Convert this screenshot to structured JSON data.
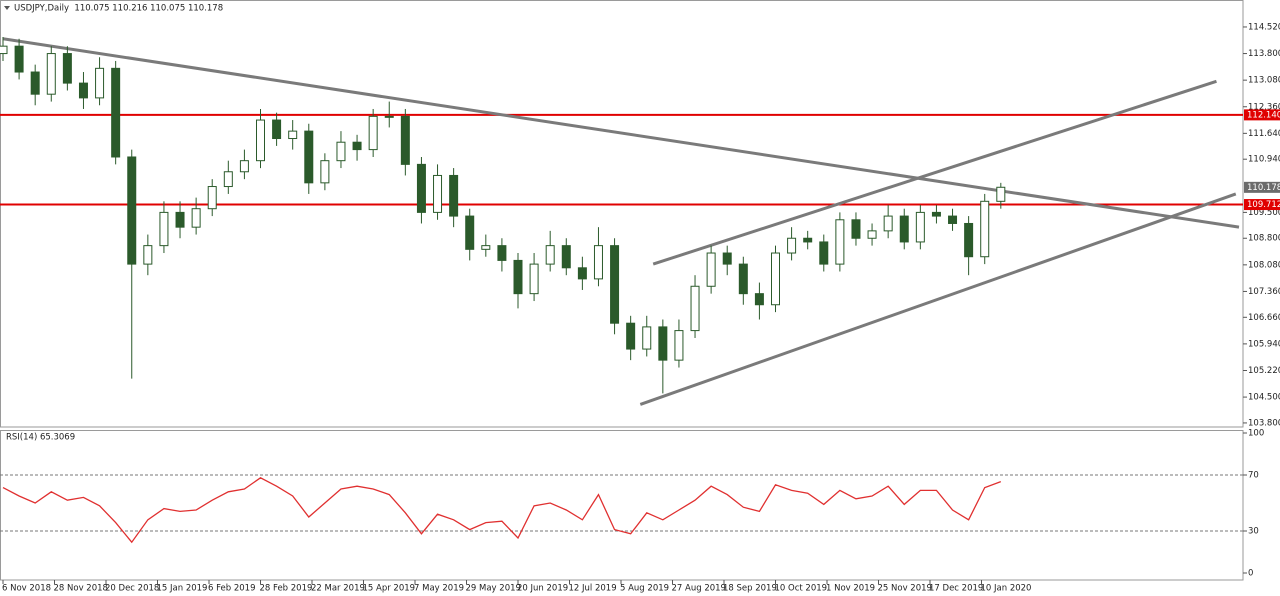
{
  "chart_data": [
    {
      "type": "candlestick",
      "title": "USDJPY,Daily  110.075 110.216 110.075 110.178",
      "up_color": "#ffffff",
      "down_color": "#2b5a2b",
      "outline_color": "#2b5a2b",
      "x": [
        0,
        5,
        10,
        15,
        20,
        25,
        30,
        35,
        40,
        45,
        50,
        55,
        60,
        65,
        70,
        75,
        80,
        85,
        90,
        95,
        100,
        105,
        110,
        115,
        120,
        125,
        130,
        135,
        140,
        145,
        150,
        155,
        160,
        165,
        170,
        175,
        180,
        185,
        190,
        195,
        200,
        205,
        210,
        215,
        220,
        225,
        230,
        235,
        240,
        245,
        250,
        255,
        260,
        265,
        270,
        275,
        280,
        285,
        290,
        295,
        300,
        305,
        310
      ],
      "ohlc": [
        [
          113.8,
          114.25,
          113.6,
          114.0
        ],
        [
          114.0,
          114.2,
          113.1,
          113.3
        ],
        [
          113.3,
          113.5,
          112.4,
          112.7
        ],
        [
          112.7,
          114.0,
          112.5,
          113.8
        ],
        [
          113.8,
          114.0,
          112.8,
          113.0
        ],
        [
          113.0,
          113.3,
          112.3,
          112.6
        ],
        [
          112.6,
          113.7,
          112.4,
          113.4
        ],
        [
          113.4,
          113.6,
          110.8,
          111.0
        ],
        [
          111.0,
          111.2,
          105.0,
          108.1
        ],
        [
          108.1,
          108.9,
          107.8,
          108.6
        ],
        [
          108.6,
          109.8,
          108.4,
          109.5
        ],
        [
          109.5,
          109.8,
          108.8,
          109.1
        ],
        [
          109.1,
          109.9,
          108.9,
          109.6
        ],
        [
          109.6,
          110.4,
          109.4,
          110.2
        ],
        [
          110.2,
          110.9,
          110.0,
          110.6
        ],
        [
          110.6,
          111.2,
          110.4,
          110.9
        ],
        [
          110.9,
          112.3,
          110.7,
          112.0
        ],
        [
          112.0,
          112.2,
          111.3,
          111.5
        ],
        [
          111.5,
          112.0,
          111.2,
          111.7
        ],
        [
          111.7,
          111.9,
          110.0,
          110.3
        ],
        [
          110.3,
          111.1,
          110.1,
          110.9
        ],
        [
          110.9,
          111.7,
          110.7,
          111.4
        ],
        [
          111.4,
          111.6,
          110.9,
          111.2
        ],
        [
          111.2,
          112.3,
          111.0,
          112.1
        ],
        [
          112.1,
          112.5,
          111.8,
          112.1
        ],
        [
          112.1,
          112.3,
          110.5,
          110.8
        ],
        [
          110.8,
          111.0,
          109.2,
          109.5
        ],
        [
          109.5,
          110.8,
          109.3,
          110.5
        ],
        [
          110.5,
          110.7,
          109.1,
          109.4
        ],
        [
          109.4,
          109.6,
          108.2,
          108.5
        ],
        [
          108.5,
          108.9,
          108.3,
          108.6
        ],
        [
          108.6,
          108.8,
          107.9,
          108.2
        ],
        [
          108.2,
          108.4,
          106.9,
          107.3
        ],
        [
          107.3,
          108.4,
          107.1,
          108.1
        ],
        [
          108.1,
          109.0,
          107.9,
          108.6
        ],
        [
          108.6,
          108.8,
          107.8,
          108.0
        ],
        [
          108.0,
          108.3,
          107.4,
          107.7
        ],
        [
          107.7,
          109.1,
          107.5,
          108.6
        ],
        [
          108.6,
          108.8,
          106.2,
          106.5
        ],
        [
          106.5,
          106.7,
          105.5,
          105.8
        ],
        [
          105.8,
          106.7,
          105.6,
          106.4
        ],
        [
          106.4,
          106.6,
          104.6,
          105.5
        ],
        [
          105.5,
          106.6,
          105.3,
          106.3
        ],
        [
          106.3,
          107.8,
          106.1,
          107.5
        ],
        [
          107.5,
          108.6,
          107.3,
          108.4
        ],
        [
          108.4,
          108.6,
          107.8,
          108.1
        ],
        [
          108.1,
          108.3,
          107.0,
          107.3
        ],
        [
          107.3,
          107.6,
          106.6,
          107.0
        ],
        [
          107.0,
          108.6,
          106.8,
          108.4
        ],
        [
          108.4,
          109.1,
          108.2,
          108.8
        ],
        [
          108.8,
          109.0,
          108.5,
          108.7
        ],
        [
          108.7,
          108.9,
          107.9,
          108.1
        ],
        [
          108.1,
          109.5,
          107.9,
          109.3
        ],
        [
          109.3,
          109.5,
          108.6,
          108.8
        ],
        [
          108.8,
          109.2,
          108.6,
          109.0
        ],
        [
          109.0,
          109.7,
          108.8,
          109.4
        ],
        [
          109.4,
          109.6,
          108.5,
          108.7
        ],
        [
          108.7,
          109.7,
          108.5,
          109.5
        ],
        [
          109.5,
          109.7,
          109.2,
          109.4
        ],
        [
          109.4,
          109.6,
          109.0,
          109.2
        ],
        [
          109.2,
          109.4,
          107.8,
          108.3
        ],
        [
          108.3,
          110.0,
          108.1,
          109.8
        ],
        [
          109.8,
          110.3,
          109.6,
          110.18
        ]
      ],
      "xlim": [
        0,
        384
      ],
      "xticks": [
        {
          "value": 0,
          "label": "6 Nov 2018"
        },
        {
          "value": 16,
          "label": "28 Nov 2018"
        },
        {
          "value": 32,
          "label": "20 Dec 2018"
        },
        {
          "value": 48,
          "label": "15 Jan 2019"
        },
        {
          "value": 64,
          "label": "6 Feb 2019"
        },
        {
          "value": 80,
          "label": "28 Feb 2019"
        },
        {
          "value": 96,
          "label": "22 Mar 2019"
        },
        {
          "value": 112,
          "label": "15 Apr 2019"
        },
        {
          "value": 128,
          "label": "7 May 2019"
        },
        {
          "value": 144,
          "label": "29 May 2019"
        },
        {
          "value": 160,
          "label": "20 Jun 2019"
        },
        {
          "value": 176,
          "label": "12 Jul 2019"
        },
        {
          "value": 192,
          "label": "5 Aug 2019"
        },
        {
          "value": 208,
          "label": "27 Aug 2019"
        },
        {
          "value": 224,
          "label": "18 Sep 2019"
        },
        {
          "value": 240,
          "label": "10 Oct 2019"
        },
        {
          "value": 256,
          "label": "1 Nov 2019"
        },
        {
          "value": 272,
          "label": "25 Nov 2019"
        },
        {
          "value": 288,
          "label": "17 Dec 2019"
        },
        {
          "value": 304,
          "label": "10 Jan 2020"
        }
      ],
      "ylim": [
        103.69,
        115.25
      ],
      "yticks": [
        {
          "value": 114.52,
          "label": "114.520"
        },
        {
          "value": 113.8,
          "label": "113.800"
        },
        {
          "value": 113.08,
          "label": "113.080"
        },
        {
          "value": 112.36,
          "label": "112.360"
        },
        {
          "value": 111.64,
          "label": "111.640"
        },
        {
          "value": 110.94,
          "label": "110.940"
        },
        {
          "value": 109.5,
          "label": "109.500"
        },
        {
          "value": 108.8,
          "label": "108.800"
        },
        {
          "value": 108.08,
          "label": "108.080"
        },
        {
          "value": 107.36,
          "label": "107.360"
        },
        {
          "value": 106.66,
          "label": "106.660"
        },
        {
          "value": 105.94,
          "label": "105.940"
        },
        {
          "value": 105.22,
          "label": "105.220"
        },
        {
          "value": 104.5,
          "label": "104.500"
        },
        {
          "value": 103.8,
          "label": "103.800"
        }
      ],
      "levels": [
        {
          "value": 112.14,
          "label": "112.140"
        },
        {
          "value": 109.712,
          "label": "109.712"
        }
      ],
      "level_color": "#e00000",
      "last_price": {
        "value": 110.178,
        "label": "110.178"
      },
      "last_price_color": "#6b6b6b",
      "trendline_color": "#7a7a7a",
      "trendlines": [
        {
          "points": [
            [
              0,
              114.2
            ],
            [
              384,
              109.1
            ]
          ]
        },
        {
          "points": [
            [
              202,
              108.1
            ],
            [
              377,
              113.05
            ]
          ]
        },
        {
          "points": [
            [
              198,
              104.3
            ],
            [
              383,
              110.0
            ]
          ]
        }
      ]
    },
    {
      "type": "line",
      "title": "RSI(14) 65.3069",
      "color": "#e03030",
      "x": [
        0,
        5,
        10,
        15,
        20,
        25,
        30,
        35,
        40,
        45,
        50,
        55,
        60,
        65,
        70,
        75,
        80,
        85,
        90,
        95,
        100,
        105,
        110,
        115,
        120,
        125,
        130,
        135,
        140,
        145,
        150,
        155,
        160,
        165,
        170,
        175,
        180,
        185,
        190,
        195,
        200,
        205,
        210,
        215,
        220,
        225,
        230,
        235,
        240,
        245,
        250,
        255,
        260,
        265,
        270,
        275,
        280,
        285,
        290,
        295,
        300,
        305,
        310
      ],
      "values": [
        61,
        55,
        50,
        58,
        52,
        54,
        48,
        36,
        22,
        38,
        46,
        44,
        45,
        52,
        58,
        60,
        68,
        62,
        55,
        40,
        50,
        60,
        62,
        60,
        56,
        43,
        28,
        42,
        38,
        31,
        36,
        37,
        25,
        48,
        50,
        45,
        38,
        56,
        31,
        28,
        43,
        38,
        45,
        52,
        62,
        56,
        47,
        44,
        63,
        59,
        57,
        49,
        59,
        53,
        55,
        62,
        49,
        59,
        59,
        45,
        38,
        61,
        65.3
      ],
      "ylim": [
        0,
        100
      ],
      "yticks": [
        0,
        30,
        70,
        100
      ],
      "levels": [
        30,
        70
      ]
    }
  ]
}
